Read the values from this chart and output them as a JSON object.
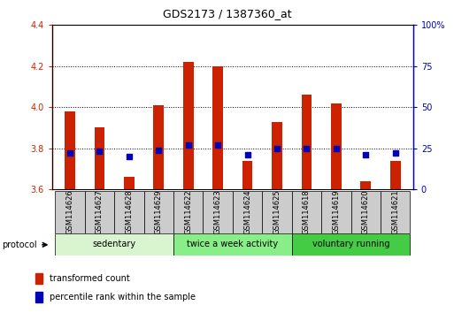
{
  "title": "GDS2173 / 1387360_at",
  "samples": [
    "GSM114626",
    "GSM114627",
    "GSM114628",
    "GSM114629",
    "GSM114622",
    "GSM114623",
    "GSM114624",
    "GSM114625",
    "GSM114618",
    "GSM114619",
    "GSM114620",
    "GSM114621"
  ],
  "transformed_count": [
    3.98,
    3.9,
    3.66,
    4.01,
    4.22,
    4.2,
    3.74,
    3.93,
    4.06,
    4.02,
    3.64,
    3.74
  ],
  "percentile_rank": [
    22,
    23,
    20,
    24,
    27,
    27,
    21,
    25,
    25,
    25,
    21,
    22
  ],
  "bar_bottom": 3.6,
  "ylim_left": [
    3.6,
    4.4
  ],
  "ylim_right": [
    0,
    100
  ],
  "yticks_left": [
    3.6,
    3.8,
    4.0,
    4.2,
    4.4
  ],
  "yticks_right": [
    0,
    25,
    50,
    75,
    100
  ],
  "ytick_labels_right": [
    "0",
    "25",
    "50",
    "75",
    "100%"
  ],
  "bar_color": "#cc2200",
  "dot_color": "#0000bb",
  "bg_color": "#ffffff",
  "protocol_groups": [
    {
      "label": "sedentary",
      "start": 0,
      "end": 4,
      "color": "#d8f5d0"
    },
    {
      "label": "twice a week activity",
      "start": 4,
      "end": 8,
      "color": "#88ee88"
    },
    {
      "label": "voluntary running",
      "start": 8,
      "end": 12,
      "color": "#44cc44"
    }
  ],
  "right_axis_color": "#0000bb",
  "tick_label_color_left": "#cc2200",
  "bar_width": 0.35,
  "dot_size": 25,
  "protocol_label": "protocol",
  "legend_items": [
    {
      "label": "transformed count",
      "color": "#cc2200"
    },
    {
      "label": "percentile rank within the sample",
      "color": "#0000bb"
    }
  ],
  "sample_box_color": "#cccccc",
  "title_fontsize": 9,
  "tick_fontsize": 7,
  "label_fontsize": 6,
  "proto_fontsize": 7,
  "legend_fontsize": 7
}
